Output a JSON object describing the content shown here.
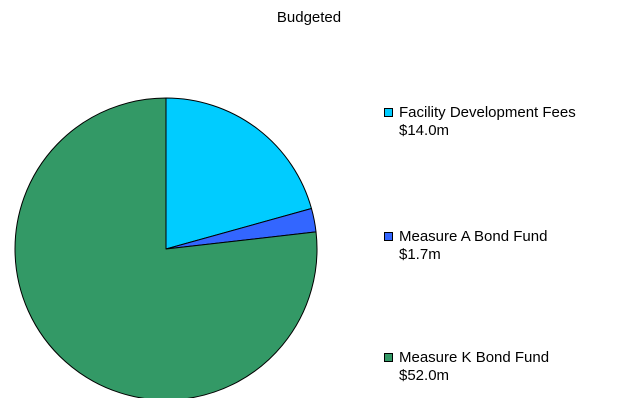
{
  "chart_data": {
    "type": "pie",
    "title": "Budgeted",
    "units": "$m",
    "legend_position": "right",
    "slices": [
      {
        "name": "Facility Development Fees",
        "value": 14.0,
        "value_label": "$14.0m",
        "color": "#00CCFF"
      },
      {
        "name": "Measure A Bond Fund",
        "value": 1.7,
        "value_label": "$1.7m",
        "color": "#3366FF"
      },
      {
        "name": "Measure K Bond Fund",
        "value": 52.0,
        "value_label": "$52.0m",
        "color": "#339966"
      }
    ]
  }
}
